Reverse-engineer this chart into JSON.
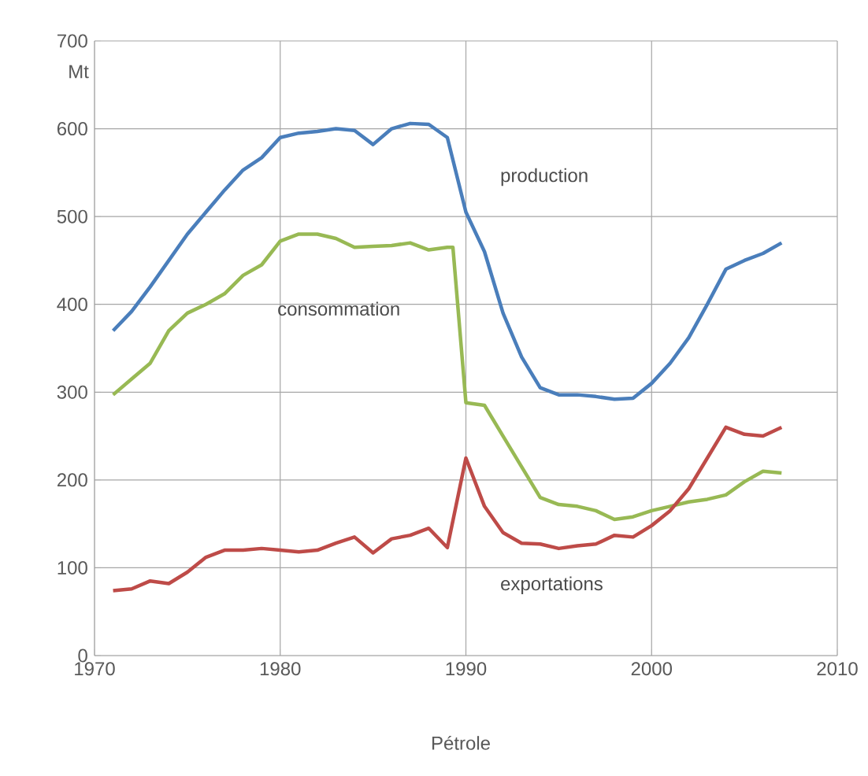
{
  "chart_data": {
    "type": "line",
    "xlabel": "Pétrole",
    "ylabel": "Mt",
    "xlim": [
      1970,
      2010
    ],
    "xticks": [
      1970,
      1980,
      1990,
      2000,
      2010
    ],
    "ylim": [
      0,
      700
    ],
    "yticks": [
      0,
      100,
      200,
      300,
      400,
      500,
      600,
      700
    ],
    "grid": true,
    "legend": false,
    "marker": "none",
    "line_style": "solid",
    "series": [
      {
        "name": "production",
        "color": "#4a7ebb",
        "x": [
          1971,
          1972,
          1973,
          1974,
          1975,
          1976,
          1977,
          1978,
          1979,
          1980,
          1981,
          1982,
          1983,
          1984,
          1985,
          1986,
          1987,
          1988,
          1989,
          1990,
          1991,
          1992,
          1993,
          1994,
          1995,
          1996,
          1997,
          1998,
          1999,
          2000,
          2001,
          2002,
          2003,
          2004,
          2005,
          2006,
          2007
        ],
        "values": [
          370,
          392,
          420,
          450,
          480,
          505,
          530,
          553,
          567,
          590,
          595,
          597,
          600,
          598,
          582,
          600,
          606,
          605,
          590,
          505,
          460,
          390,
          340,
          305,
          297,
          297,
          295,
          292,
          293,
          310,
          333,
          362,
          400,
          440,
          450,
          458,
          470
        ]
      },
      {
        "name": "consommation",
        "color": "#98b954",
        "x": [
          1971,
          1972,
          1973,
          1974,
          1975,
          1976,
          1977,
          1978,
          1979,
          1980,
          1981,
          1982,
          1983,
          1984,
          1985,
          1986,
          1987,
          1988,
          1989,
          1989.3,
          1990,
          1991,
          1992,
          1993,
          1994,
          1995,
          1996,
          1997,
          1998,
          1999,
          2000,
          2001,
          2002,
          2003,
          2004,
          2005,
          2006,
          2007
        ],
        "values": [
          297,
          315,
          333,
          370,
          390,
          400,
          412,
          433,
          445,
          472,
          480,
          480,
          475,
          465,
          466,
          467,
          470,
          462,
          465,
          465,
          288,
          285,
          250,
          215,
          180,
          172,
          170,
          165,
          155,
          158,
          165,
          170,
          175,
          178,
          183,
          198,
          210,
          208
        ]
      },
      {
        "name": "exportations",
        "color": "#be4b48",
        "x": [
          1971,
          1972,
          1973,
          1974,
          1975,
          1976,
          1977,
          1978,
          1979,
          1980,
          1981,
          1982,
          1983,
          1984,
          1985,
          1986,
          1987,
          1988,
          1989,
          1990,
          1991,
          1992,
          1993,
          1994,
          1995,
          1996,
          1997,
          1998,
          1999,
          2000,
          2001,
          2002,
          2003,
          2004,
          2005,
          2006,
          2007
        ],
        "values": [
          74,
          76,
          85,
          82,
          95,
          112,
          120,
          120,
          122,
          120,
          118,
          120,
          128,
          135,
          117,
          133,
          137,
          145,
          123,
          225,
          170,
          140,
          128,
          127,
          122,
          125,
          127,
          137,
          135,
          148,
          165,
          190,
          225,
          260,
          252,
          250,
          260
        ]
      }
    ]
  }
}
